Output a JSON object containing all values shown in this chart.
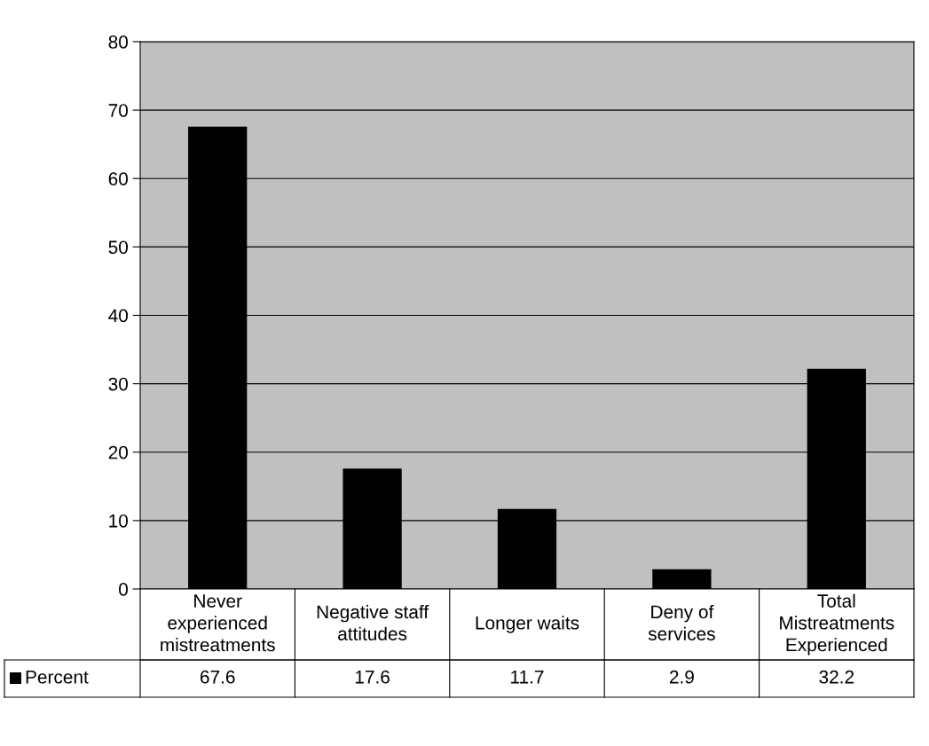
{
  "chart_data": {
    "type": "bar",
    "categories": [
      "Never experienced mistreatments",
      "Negative staff attitudes",
      "Longer waits",
      "Deny of services",
      "Total Mistreatments Experienced"
    ],
    "series": [
      {
        "name": "Percent",
        "color": "#000000",
        "values": [
          67.6,
          17.6,
          11.7,
          2.9,
          32.2
        ]
      }
    ],
    "ylim": [
      0,
      80
    ],
    "yticks": [
      0,
      10,
      20,
      30,
      40,
      50,
      60,
      70,
      80
    ],
    "grid": "y",
    "legend": "bottom",
    "data_labels": true
  }
}
